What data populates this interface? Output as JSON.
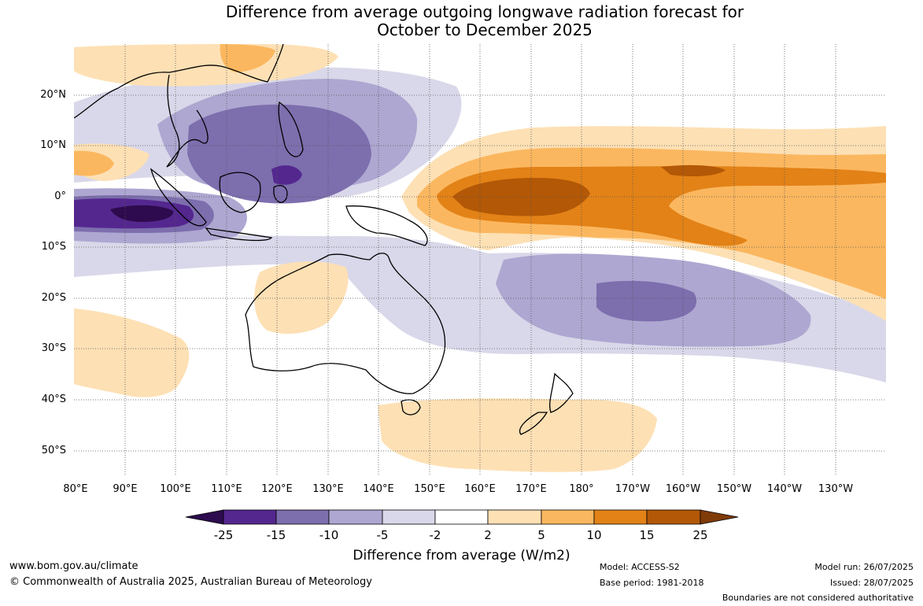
{
  "title": {
    "line1": "Difference from average outgoing longwave radiation forecast for",
    "line2": "October to December 2025"
  },
  "map": {
    "lat_ticks": [
      "20°N",
      "10°N",
      "0°",
      "10°S",
      "20°S",
      "30°S",
      "40°S",
      "50°S"
    ],
    "lon_ticks": [
      "80°E",
      "90°E",
      "100°E",
      "110°E",
      "120°E",
      "130°E",
      "140°E",
      "150°E",
      "160°E",
      "170°E",
      "180°",
      "170°W",
      "160°W",
      "150°W",
      "140°W",
      "130°W"
    ]
  },
  "colorbar": {
    "ticks": [
      "-25",
      "-15",
      "-10",
      "-5",
      "-2",
      "2",
      "5",
      "10",
      "15",
      "25"
    ],
    "colors": {
      "under": "#2d0b4e",
      "neg_25_15": "#54278f",
      "neg_15_10": "#7d6eae",
      "neg_10_5": "#aea7d1",
      "neg_5_2": "#d9d8ea",
      "neutral": "#ffffff",
      "pos_2_5": "#fde0b4",
      "pos_5_10": "#fbb75f",
      "pos_10_15": "#e28217",
      "pos_15_25": "#b35806",
      "over": "#7f3b08"
    },
    "label": "Difference from average (W/m2)"
  },
  "footer": {
    "url": "www.bom.gov.au/climate",
    "copyright": "© Commonwealth of Australia 2025, Australian Bureau of Meteorology",
    "model": "Model: ACCESS-S2",
    "base_period": "Base period: 1981-2018",
    "model_run": "Model run: 26/07/2025",
    "issued": "Issued: 28/07/2025",
    "disclaimer": "Boundaries are not considered authoritative"
  }
}
